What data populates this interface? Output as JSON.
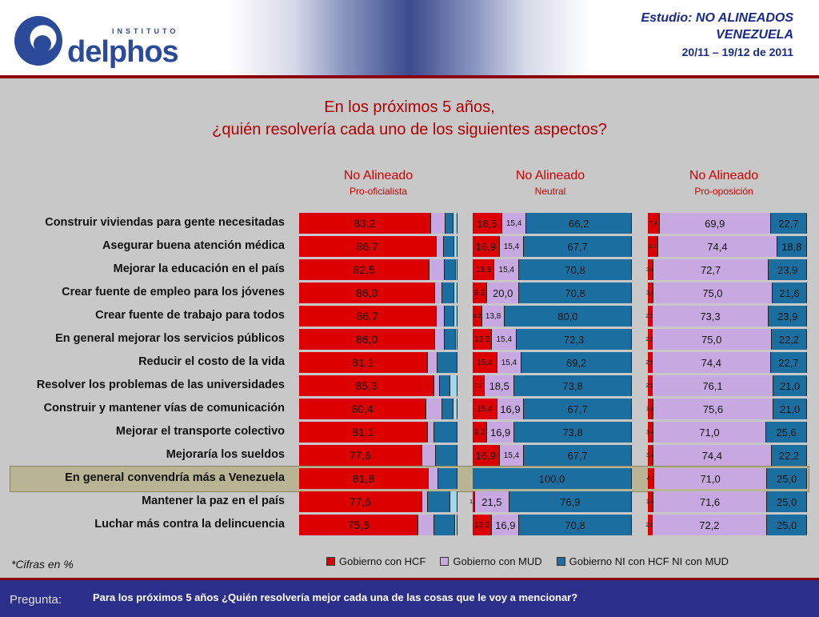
{
  "header": {
    "logo_small": "INSTITUTO",
    "logo_main": "delphos",
    "study_line1": "Estudio: NO ALINEADOS",
    "study_line2": "VENEZUELA",
    "study_line3": "20/11 – 19/12 de 2011"
  },
  "title_line1": "En los próximos 5 años,",
  "title_line2": "¿quién resolvería cada uno de los siguientes aspectos?",
  "note": "*Cifras en %",
  "footer": {
    "label": "Pregunta:",
    "question": "Para los próximos 5 años ¿Quién resolvería mejor cada una de las cosas que le voy a mencionar?"
  },
  "colors": {
    "hcf": "#dd0000",
    "mud": "#c8a8e0",
    "ni": "#1a6fa0",
    "bright": "#9fd8e8"
  },
  "chart_data": {
    "type": "bar",
    "stacked": true,
    "orientation": "horizontal",
    "groups": [
      {
        "title": "No Alineado",
        "subtitle": "Pro-oficialista"
      },
      {
        "title": "No Alineado",
        "subtitle": "Neutral"
      },
      {
        "title": "No Alineado",
        "subtitle": "Pro-oposición"
      }
    ],
    "categories": [
      "Construir viviendas para gente necesitadas",
      "Asegurar buena atención médica",
      "Mejorar la educación en el país",
      "Crear fuente de empleo para los jóvenes",
      "Crear fuente de trabajo para todos",
      "En general mejorar los servicios públicos",
      "Reducir el costo de la vida",
      "Resolver los problemas de las universidades",
      "Construir y mantener vías de comunicación",
      "Mejorar el transporte colectivo",
      "Mejoraría los sueldos",
      "En general convendría más a Venezuela",
      "Mantener la paz en el país",
      "Luchar más contra la delincuencia"
    ],
    "legend": [
      "Gobierno con HCF",
      "Gobierno con MUD",
      "Gobierno NI con HCF NI con MUD"
    ],
    "highlight_index": 11,
    "panels": [
      {
        "rows": [
          [
            83.2,
            9.0,
            5.5,
            2.3,
            "83,2",
            "",
            ""
          ],
          [
            86.7,
            4.5,
            6.8,
            2.0,
            "86,7",
            "",
            ""
          ],
          [
            82.5,
            9.3,
            7.0,
            1.2,
            "82,5",
            "",
            ""
          ],
          [
            86.0,
            4.5,
            7.5,
            2.0,
            "86,0",
            "",
            ""
          ],
          [
            86.7,
            5.0,
            6.3,
            2.0,
            "86,7",
            "",
            ""
          ],
          [
            86.0,
            6.0,
            6.8,
            1.2,
            "86,0",
            "",
            ""
          ],
          [
            81.1,
            6.5,
            12.4,
            0,
            "81,1",
            "",
            ""
          ],
          [
            85.3,
            3.5,
            6.8,
            4.4,
            "85,3",
            "",
            ""
          ],
          [
            80.4,
            10.0,
            7.0,
            2.6,
            "80,4",
            "",
            ""
          ],
          [
            81.1,
            4.5,
            14.4,
            0,
            "81,1",
            "",
            ""
          ],
          [
            77.6,
            9.0,
            13.4,
            0,
            "77,6",
            "",
            ""
          ],
          [
            81.8,
            6.0,
            12.2,
            0,
            "81,8",
            "",
            ""
          ],
          [
            77.6,
            3.5,
            14.5,
            4.4,
            "77,6",
            "",
            ""
          ],
          [
            75.5,
            10.0,
            13.0,
            1.5,
            "75,5",
            "",
            ""
          ]
        ]
      },
      {
        "rows": [
          [
            18.5,
            15.4,
            66.2,
            0,
            "18,5",
            "15,4",
            "66,2"
          ],
          [
            16.9,
            15.4,
            67.7,
            0,
            "16,9",
            "15,4",
            "67,7"
          ],
          [
            13.8,
            15.4,
            70.8,
            0,
            "13,8",
            "15,4",
            "70,8"
          ],
          [
            9.2,
            20.0,
            70.8,
            0,
            "9,2",
            "20,0",
            "70,8"
          ],
          [
            6.2,
            13.8,
            80.0,
            0,
            "6,2",
            "13,8",
            "80,0"
          ],
          [
            12.3,
            15.4,
            72.3,
            0,
            "12,3",
            "15,4",
            "72,3"
          ],
          [
            15.4,
            15.4,
            69.2,
            0,
            "15,4",
            "15,4",
            "69,2"
          ],
          [
            7.7,
            18.5,
            73.8,
            0,
            "7,7",
            "18,5",
            "73,8"
          ],
          [
            15.4,
            16.9,
            67.7,
            0,
            "15,4",
            "16,9",
            "67,7"
          ],
          [
            9.2,
            16.9,
            73.8,
            0,
            "9,2",
            "16,9",
            "73,8"
          ],
          [
            16.9,
            15.4,
            67.7,
            0,
            "16,9",
            "15,4",
            "67,7"
          ],
          [
            0,
            0,
            100.0,
            0,
            "",
            "",
            "100,0"
          ],
          [
            1.5,
            21.5,
            76.9,
            0,
            "1,5",
            "21,5",
            "76,9"
          ],
          [
            12.3,
            16.9,
            70.8,
            0,
            "12,3",
            "16,9",
            "70,8"
          ]
        ]
      },
      {
        "rows": [
          [
            7.4,
            69.9,
            22.7,
            0,
            "7,4",
            "69,9",
            "22,7"
          ],
          [
            6.7,
            74.4,
            18.8,
            0,
            "6,7",
            "74,4",
            "18,8"
          ],
          [
            3.4,
            72.7,
            23.9,
            0,
            "3,4",
            "72,7",
            "23,9"
          ],
          [
            3.4,
            75.0,
            21.6,
            0,
            "3,4",
            "75,0",
            "21,6"
          ],
          [
            2.8,
            73.3,
            23.9,
            0,
            "2,8",
            "73,3",
            "23,9"
          ],
          [
            2.8,
            75.0,
            22.2,
            0,
            "2,8",
            "75,0",
            "22,2"
          ],
          [
            2.9,
            74.4,
            22.7,
            0,
            "2,9",
            "74,4",
            "22,7"
          ],
          [
            2.9,
            76.1,
            21.0,
            0,
            "2,9",
            "76,1",
            "21,0"
          ],
          [
            3.4,
            75.6,
            21.0,
            0,
            "3,4",
            "75,6",
            "21,0"
          ],
          [
            3.4,
            71.0,
            25.6,
            0,
            "3,4",
            "71,0",
            "25,6"
          ],
          [
            3.4,
            74.4,
            22.2,
            0,
            "3,4",
            "74,4",
            "22,2"
          ],
          [
            4.0,
            71.0,
            25.0,
            0,
            "4,0",
            "71,0",
            "25,0"
          ],
          [
            3.4,
            71.6,
            25.0,
            0,
            "3,4",
            "71,6",
            "25,0"
          ],
          [
            2.8,
            72.2,
            25.0,
            0,
            "2,8",
            "72,2",
            "25,0"
          ]
        ]
      }
    ]
  }
}
